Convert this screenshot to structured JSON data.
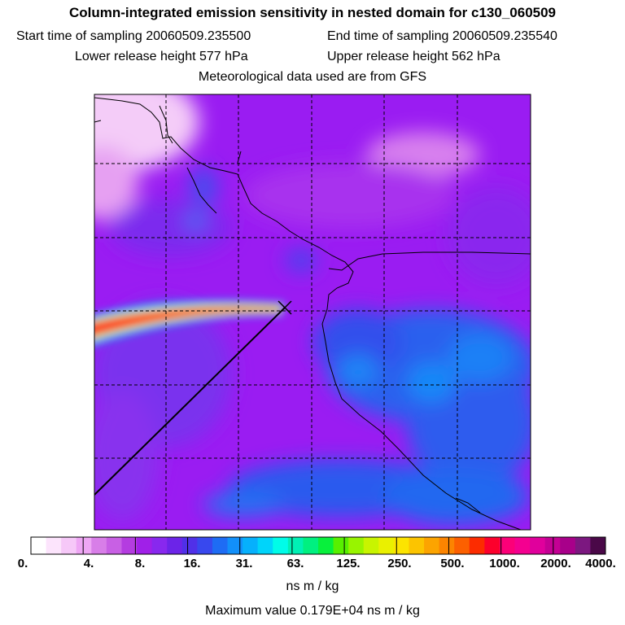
{
  "title": "Column-integrated emission sensitivity in nested domain for c130_060509",
  "header": {
    "start_label": "Start time of sampling",
    "start_value": "20060509.235500",
    "end_label": "End time of sampling",
    "end_value": "20060509.235540",
    "lower_label": "Lower release height",
    "lower_value": "577 hPa",
    "upper_label": "Upper release height",
    "upper_value": "562 hPa",
    "met_text": "Meteorological data used are from GFS"
  },
  "colorbar": {
    "tick_labels": [
      "0.",
      "4.",
      "8.",
      "16.",
      "31.",
      "63.",
      "125.",
      "250.",
      "500.",
      "1000.",
      "2000.",
      "4000."
    ],
    "tick_values": [
      0,
      4,
      8,
      16,
      31,
      63,
      125,
      250,
      500,
      1000,
      2000,
      4000
    ],
    "unit": "ns m / kg",
    "colors": [
      "#ffffff",
      "#fce4fc",
      "#f6c8f8",
      "#eea6f4",
      "#d87ee8",
      "#c860e4",
      "#b43ce0",
      "#a020e8",
      "#8828ee",
      "#6c24e8",
      "#5030e8",
      "#3848ee",
      "#1e6cf4",
      "#1290fa",
      "#06b0fc",
      "#00d4fa",
      "#00fce8",
      "#00f0b4",
      "#00f080",
      "#08f03c",
      "#58f000",
      "#98f400",
      "#c8f400",
      "#eaf000",
      "#fce400",
      "#fcc400",
      "#fca400",
      "#fc8400",
      "#fc6000",
      "#fc2c00",
      "#fc002c",
      "#fc0078",
      "#f40090",
      "#e0009c",
      "#c40094",
      "#a8008a",
      "#7c1880",
      "#4a0848"
    ]
  },
  "maximum": {
    "label": "Maximum value",
    "value": "0.179E+04",
    "unit": "ns m / kg"
  },
  "chart_data": {
    "type": "heatmap",
    "title": "Column-integrated emission sensitivity in nested domain for c130_060509",
    "field": "column-integrated emission sensitivity",
    "units": "ns m / kg",
    "scale": "logarithmic, 0 to 4000",
    "max_value": 1790,
    "release_heights_hPa": [
      577,
      562
    ],
    "grid": "dashed lat/lon grid, 6x6 cells",
    "features": [
      "high-sensitivity plume (500-1800) extending west from the release point",
      "moderate values (16-63) over the southern and eastern regions",
      "low values (1-8) in the northwest corner",
      "flight track line running from release point to the southwest edge"
    ]
  }
}
